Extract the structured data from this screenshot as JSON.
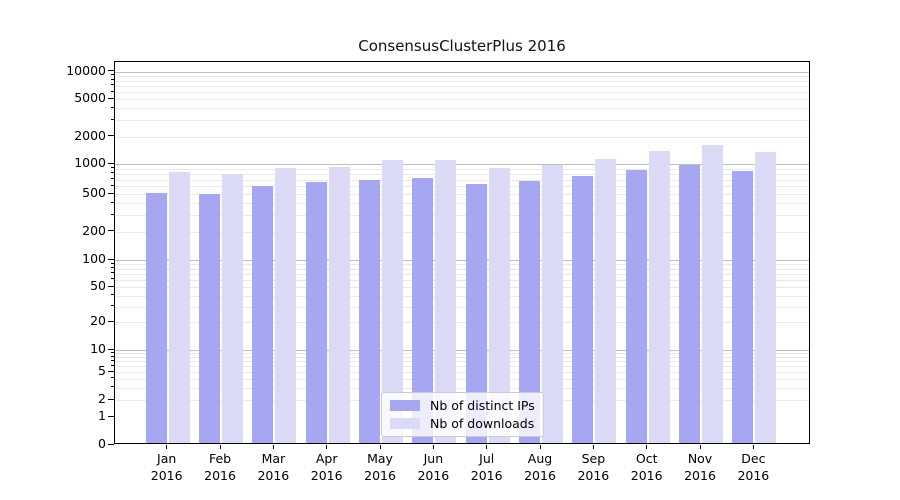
{
  "chart_data": {
    "type": "bar",
    "title": "ConsensusClusterPlus 2016",
    "categories": [
      "Jan 2016",
      "Feb 2016",
      "Mar 2016",
      "Apr 2016",
      "May 2016",
      "Jun 2016",
      "Jul 2016",
      "Aug 2016",
      "Sep 2016",
      "Oct 2016",
      "Nov 2016",
      "Dec 2016"
    ],
    "series": [
      {
        "name": "Nb of distinct IPs",
        "color": "#a6a6f2",
        "values": [
          490,
          485,
          578,
          628,
          672,
          694,
          610,
          650,
          726,
          830,
          942,
          810
        ]
      },
      {
        "name": "Nb of downloads",
        "color": "#dbdbf8",
        "values": [
          793,
          770,
          868,
          903,
          1058,
          1073,
          871,
          940,
          1075,
          1335,
          1530,
          1292
        ]
      }
    ],
    "xlabel": "",
    "ylabel": "",
    "yscale": "symlog",
    "ylim": [
      0,
      10000
    ],
    "yticks": [
      0,
      1,
      2,
      5,
      10,
      20,
      50,
      100,
      200,
      500,
      1000,
      2000,
      5000,
      10000
    ],
    "grid": true,
    "legend_position": "lower center inside plot"
  },
  "colors": {
    "bar_dark": "#a6a6f2",
    "bar_light": "#dbdbf8",
    "major_grid": "#bfbfbf",
    "minor_grid": "#e9e9e9",
    "axis": "#000000",
    "legend_border": "#cccccc",
    "legend_bg": "rgba(255,255,255,0.8)"
  }
}
